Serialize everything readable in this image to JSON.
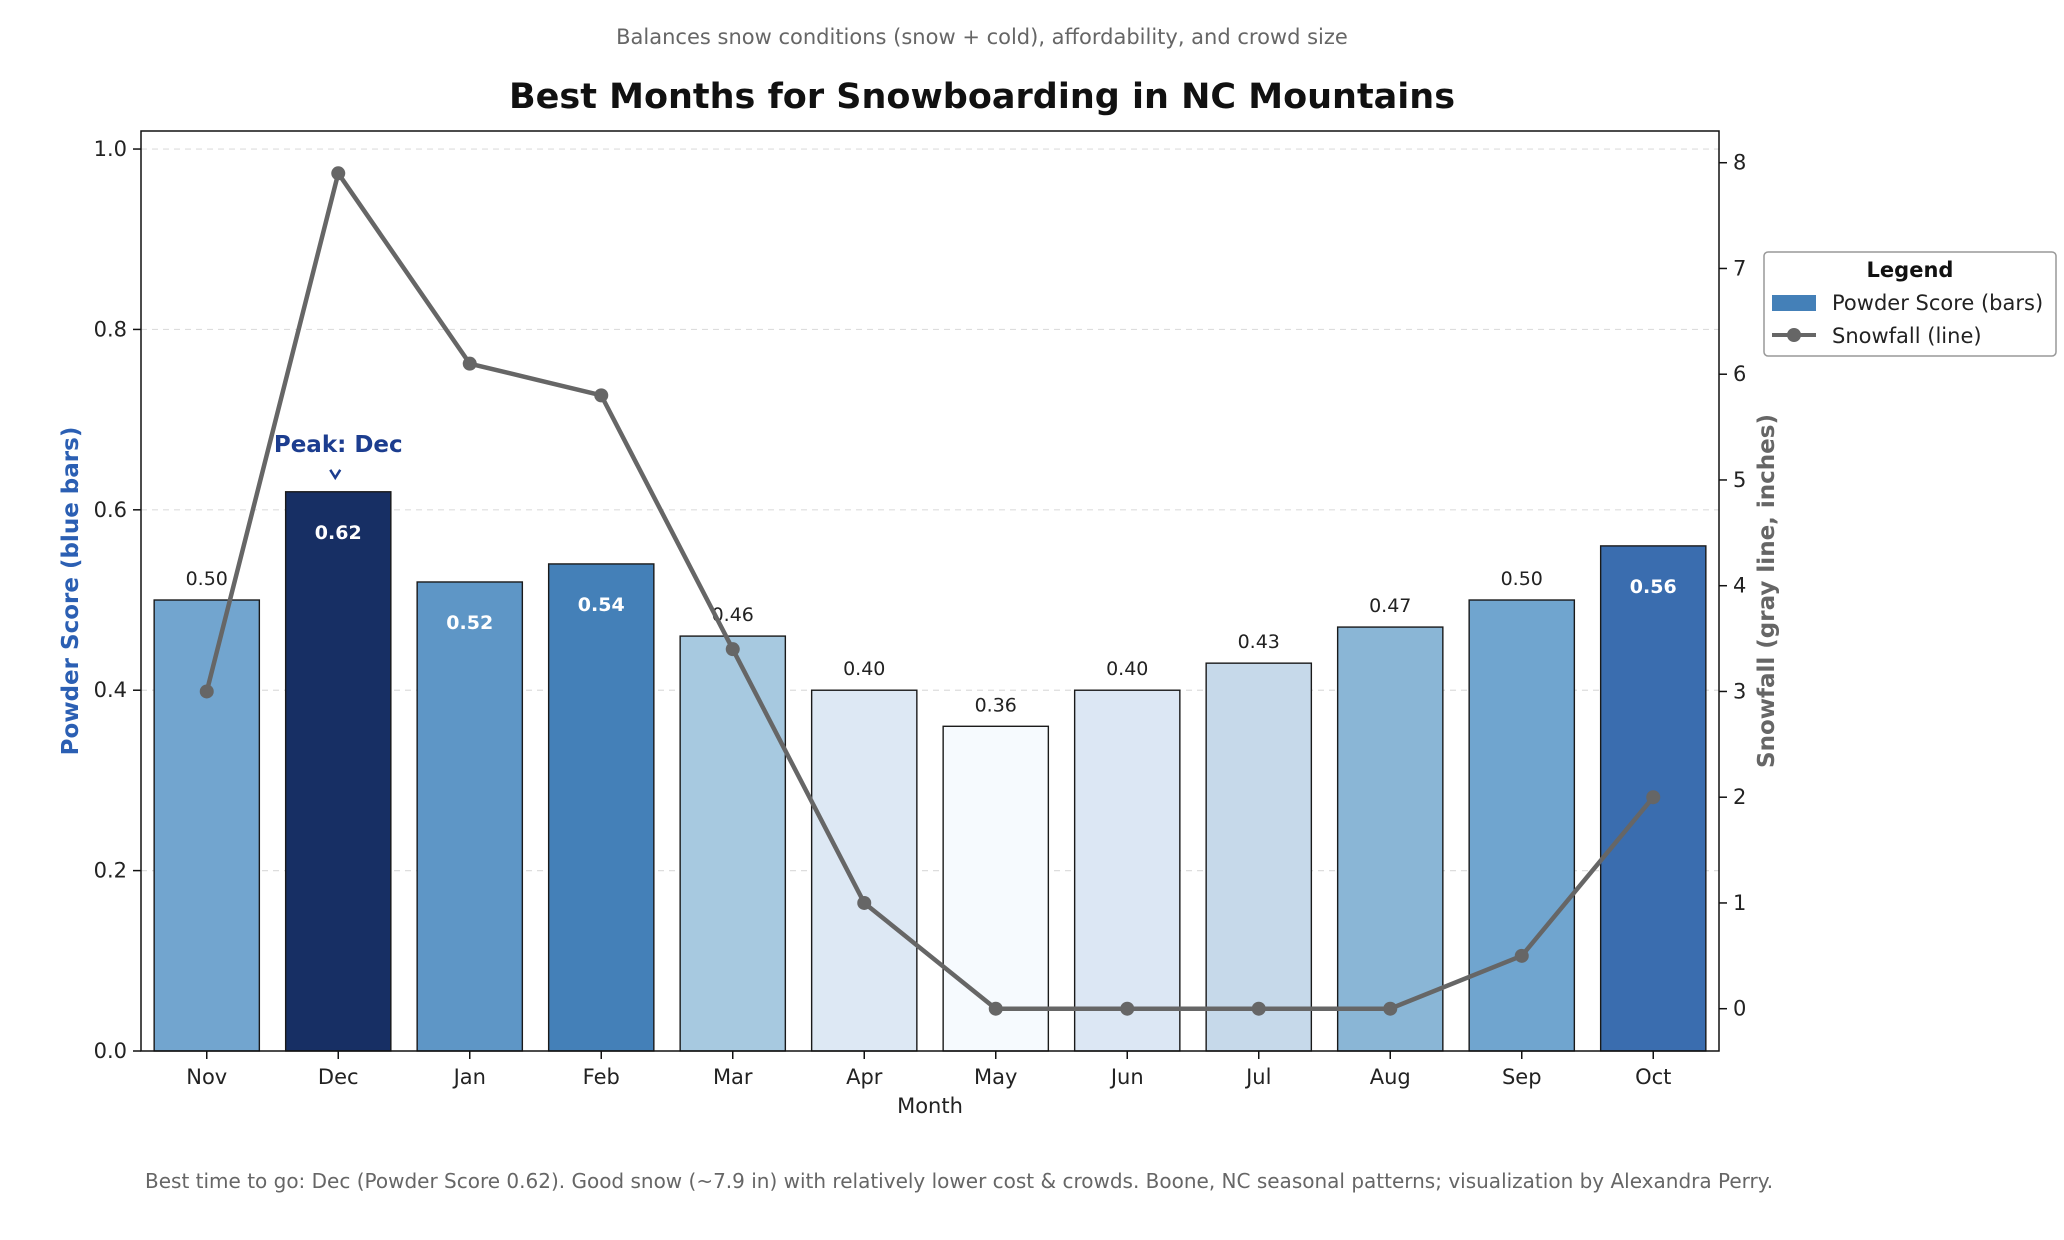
{
  "chart_data": {
    "type": "bar",
    "subtitle": "Balances snow conditions (snow + cold), affordability, and crowd size",
    "title": "Best Months for Snowboarding in NC Mountains",
    "xlabel": "Month",
    "ylabel": "Powder Score (blue bars)",
    "ylabel_right": "Snowfall (gray line, inches)",
    "categories": [
      "Nov",
      "Dec",
      "Jan",
      "Feb",
      "Mar",
      "Apr",
      "May",
      "Jun",
      "Jul",
      "Aug",
      "Sep",
      "Oct"
    ],
    "series": [
      {
        "name": "Powder Score (bars)",
        "type": "bar",
        "axis": "left",
        "values": [
          0.5,
          0.62,
          0.52,
          0.54,
          0.46,
          0.4,
          0.36,
          0.4,
          0.43,
          0.47,
          0.5,
          0.56
        ],
        "value_labels": [
          "0.50",
          "0.62",
          "0.52",
          "0.54",
          "0.46",
          "0.40",
          "0.36",
          "0.40",
          "0.43",
          "0.47",
          "0.50",
          "0.56"
        ],
        "label_inside": [
          false,
          true,
          true,
          true,
          false,
          false,
          false,
          false,
          false,
          false,
          false,
          true
        ],
        "colors": [
          "#72a5cf",
          "#172f64",
          "#5e96c6",
          "#4480b8",
          "#a7c9e0",
          "#dde8f4",
          "#f6fafe",
          "#dce7f4",
          "#c6d9ea",
          "#8ab6d6",
          "#70a5cf",
          "#3a6daf"
        ]
      },
      {
        "name": "Snowfall (line)",
        "type": "line",
        "axis": "right",
        "color": "#666666",
        "values": [
          3.0,
          7.9,
          6.1,
          5.8,
          3.4,
          1.0,
          0.0,
          0.0,
          0.0,
          0.0,
          0.5,
          2.0
        ]
      }
    ],
    "ylim": [
      0,
      1.02
    ],
    "yticks": [
      0.0,
      0.2,
      0.4,
      0.6,
      0.8,
      1.0
    ],
    "ytick_labels": [
      "0.0",
      "0.2",
      "0.4",
      "0.6",
      "0.8",
      "1.0"
    ],
    "ylim_right": [
      -0.4,
      8.3
    ],
    "yticks_right": [
      0,
      1,
      2,
      3,
      4,
      5,
      6,
      7,
      8
    ],
    "ytick_labels_right": [
      "0",
      "1",
      "2",
      "3",
      "4",
      "5",
      "6",
      "7",
      "8"
    ],
    "grid": true,
    "annotation": {
      "text": "Peak: Dec",
      "category": "Dec"
    },
    "legend": {
      "title": "Legend",
      "placement": "right-outside"
    },
    "footnote": "Best time to go: Dec (Powder Score 0.62). Good snow (~7.9 in) with relatively lower cost & crowds. Boone, NC seasonal patterns; visualization by Alexandra Perry."
  }
}
